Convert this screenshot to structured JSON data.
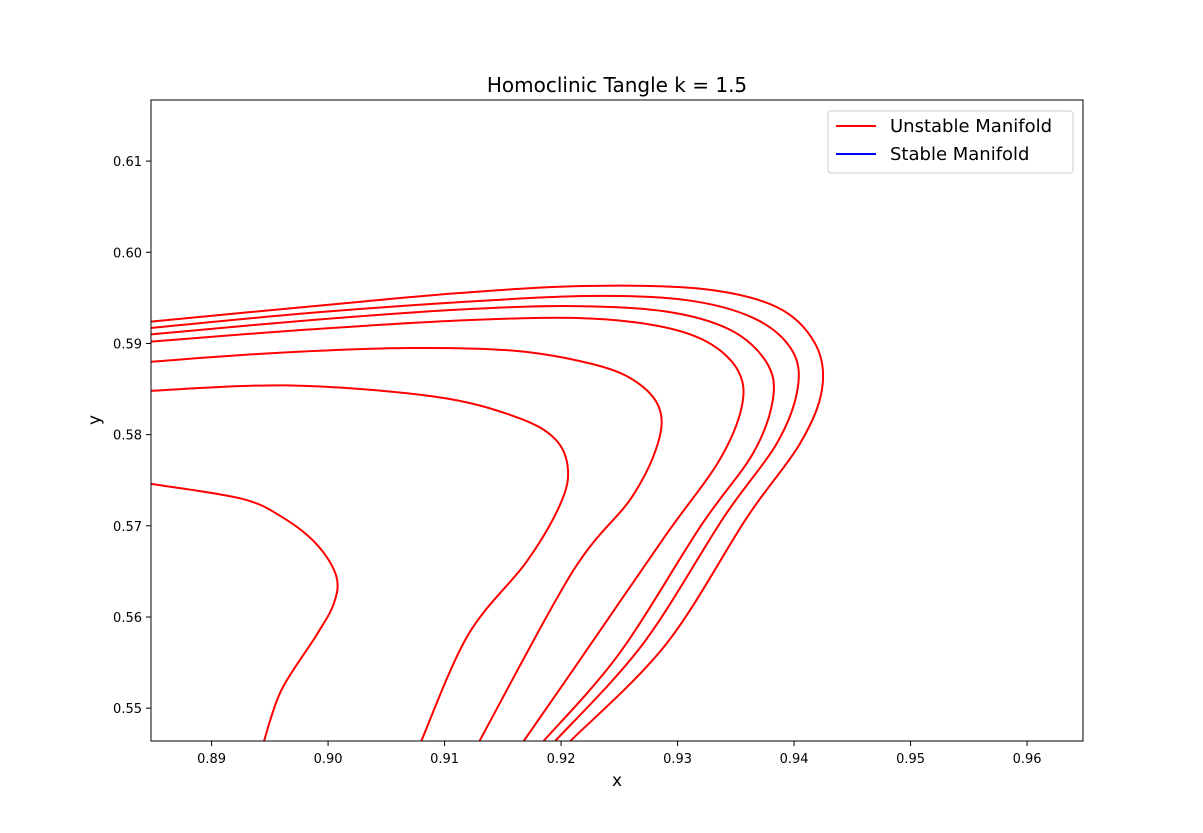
{
  "chart_data": {
    "type": "line",
    "title": "Homoclinic Tangle k = 1.5",
    "xlabel": "x",
    "ylabel": "y",
    "xlim": [
      0.8848,
      0.9648
    ],
    "ylim": [
      0.5464,
      0.6167
    ],
    "x_ticks": [
      0.89,
      0.9,
      0.91,
      0.92,
      0.93,
      0.94,
      0.95,
      0.96
    ],
    "x_tick_labels": [
      "0.89",
      "0.90",
      "0.91",
      "0.92",
      "0.93",
      "0.94",
      "0.95",
      "0.96"
    ],
    "y_ticks": [
      0.55,
      0.56,
      0.57,
      0.58,
      0.59,
      0.6,
      0.61
    ],
    "y_tick_labels": [
      "0.55",
      "0.56",
      "0.57",
      "0.58",
      "0.59",
      "0.60",
      "0.61"
    ],
    "grid": false,
    "legend": {
      "placement": "top-right",
      "entries": [
        {
          "label": "Unstable Manifold",
          "color": "#ff0000"
        },
        {
          "label": "Stable Manifold",
          "color": "#0000ff"
        }
      ]
    },
    "series": [
      {
        "name": "Unstable Manifold",
        "color": "#ff0000",
        "curves": [
          {
            "x": [
              0.8848,
              0.8925,
              0.896,
              0.899,
              0.9007,
              0.9005,
              0.899,
              0.896,
              0.8945
            ],
            "y": [
              0.5746,
              0.573,
              0.571,
              0.568,
              0.5645,
              0.5615,
              0.558,
              0.552,
              0.5464
            ]
          },
          {
            "x": [
              0.8848,
              0.8965,
              0.909,
              0.916,
              0.9195,
              0.9206,
              0.9198,
              0.917,
              0.912,
              0.908
            ],
            "y": [
              0.5848,
              0.5854,
              0.5842,
              0.582,
              0.5795,
              0.576,
              0.572,
              0.566,
              0.558,
              0.5464
            ]
          },
          {
            "x": [
              0.8848,
              0.896,
              0.907,
              0.916,
              0.9225,
              0.9262,
              0.9284,
              0.9283,
              0.926,
              0.921,
              0.913
            ],
            "y": [
              0.588,
              0.589,
              0.5895,
              0.5892,
              0.5878,
              0.586,
              0.583,
              0.579,
              0.573,
              0.565,
              0.5464
            ]
          },
          {
            "x": [
              0.8848,
              0.898,
              0.911,
              0.921,
              0.928,
              0.9325,
              0.9352,
              0.9355,
              0.9335,
              0.929,
              0.922,
              0.9168
            ],
            "y": [
              0.5902,
              0.5915,
              0.5925,
              0.5928,
              0.592,
              0.5902,
              0.587,
              0.583,
              0.577,
              0.569,
              0.556,
              0.5464
            ]
          },
          {
            "x": [
              0.8848,
              0.898,
              0.911,
              0.921,
              0.929,
              0.9345,
              0.9376,
              0.9382,
              0.9365,
              0.932,
              0.925,
              0.9185
            ],
            "y": [
              0.591,
              0.5925,
              0.5937,
              0.5941,
              0.5935,
              0.5915,
              0.588,
              0.584,
              0.578,
              0.57,
              0.556,
              0.5464
            ]
          },
          {
            "x": [
              0.8848,
              0.898,
              0.911,
              0.922,
              0.9305,
              0.9365,
              0.9398,
              0.9403,
              0.9385,
              0.934,
              0.927,
              0.9195
            ],
            "y": [
              0.5917,
              0.5933,
              0.5945,
              0.5952,
              0.5948,
              0.5928,
              0.5893,
              0.585,
              0.579,
              0.571,
              0.557,
              0.5464
            ]
          },
          {
            "x": [
              0.8848,
              0.898,
              0.911,
              0.922,
              0.932,
              0.9385,
              0.9418,
              0.9424,
              0.9405,
              0.936,
              0.929,
              0.9208
            ],
            "y": [
              0.5924,
              0.594,
              0.5955,
              0.5963,
              0.596,
              0.594,
              0.59,
              0.585,
              0.579,
              0.571,
              0.557,
              0.5464
            ]
          }
        ]
      },
      {
        "name": "Stable Manifold",
        "color": "#0000ff",
        "curves": []
      }
    ]
  }
}
